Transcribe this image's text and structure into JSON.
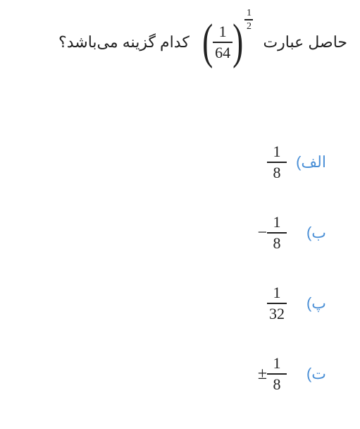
{
  "question": {
    "prefix": "حاصل عبارت",
    "suffix": "کدام گزینه می‌باشد؟",
    "expression": {
      "base_num": "1",
      "base_den": "64",
      "exp_num": "1",
      "exp_den": "2"
    }
  },
  "options": [
    {
      "label": "الف)",
      "sign": "",
      "num": "1",
      "den": "8"
    },
    {
      "label": "ب)",
      "sign": "−",
      "num": "1",
      "den": "8"
    },
    {
      "label": "پ)",
      "sign": "",
      "num": "1",
      "den": "32"
    },
    {
      "label": "ت)",
      "sign": "±",
      "num": "1",
      "den": "8"
    }
  ],
  "colors": {
    "option_label": "#4a8fd6",
    "text": "#222222",
    "background": "#ffffff"
  }
}
